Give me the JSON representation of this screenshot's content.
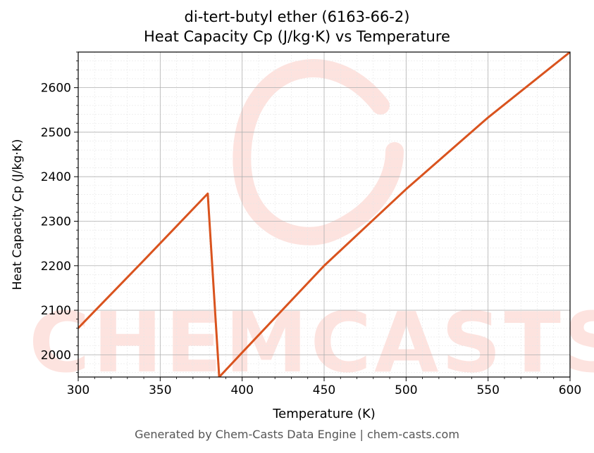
{
  "chart_data": {
    "type": "line",
    "title_line1": "di-tert-butyl ether (6163-66-2)",
    "title_line2": "Heat Capacity Cp (J/kg·K) vs Temperature",
    "xlabel": "Temperature (K)",
    "ylabel": "Heat Capacity Cp (J/kg·K)",
    "xlim": [
      300,
      600
    ],
    "ylim": [
      1950,
      2680
    ],
    "xticks": [
      300,
      350,
      400,
      450,
      500,
      550,
      600
    ],
    "yticks": [
      2000,
      2100,
      2200,
      2300,
      2400,
      2500,
      2600
    ],
    "grid": true,
    "series": [
      {
        "color": "#d9531e",
        "x": [
          300,
          340,
          379,
          386,
          400,
          450,
          500,
          550,
          600
        ],
        "y": [
          2060,
          2212,
          2362,
          1950,
          2005,
          2200,
          2372,
          2533,
          2680
        ]
      }
    ],
    "watermark": "CHEMCASTS",
    "watermark_color": "#fde3df"
  },
  "footer": "Generated by Chem-Casts Data Engine | chem-casts.com"
}
